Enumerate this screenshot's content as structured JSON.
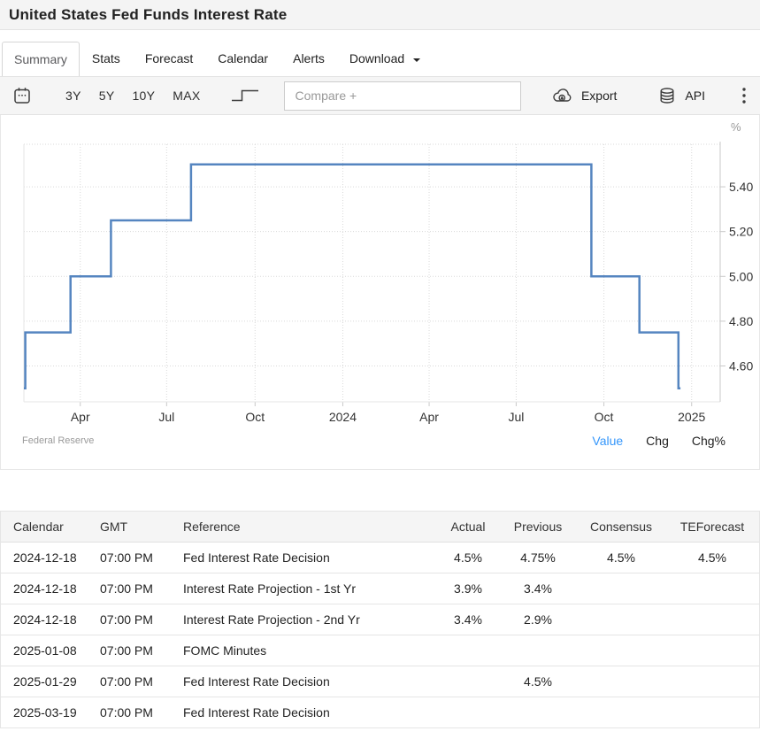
{
  "page": {
    "title": "United States Fed Funds Interest Rate"
  },
  "tabs": {
    "items": [
      {
        "label": "Summary",
        "active": true
      },
      {
        "label": "Stats",
        "active": false
      },
      {
        "label": "Forecast",
        "active": false
      },
      {
        "label": "Calendar",
        "active": false
      },
      {
        "label": "Alerts",
        "active": false
      },
      {
        "label": "Download",
        "active": false,
        "has_dropdown": true
      }
    ]
  },
  "toolbar": {
    "ranges": [
      {
        "label": "3Y"
      },
      {
        "label": "5Y"
      },
      {
        "label": "10Y"
      },
      {
        "label": "MAX"
      }
    ],
    "compare_placeholder": "Compare +",
    "export_label": "Export",
    "api_label": "API",
    "icons": {
      "date_range": "calendar-icon",
      "chart_type": "step-chart-icon",
      "export": "cloud-download-icon",
      "api": "database-icon",
      "menu": "kebab-menu-icon",
      "download_caret": "chevron-down-icon"
    }
  },
  "chart_data": {
    "type": "line",
    "subtype": "step-after",
    "title": "United States Fed Funds Interest Rate",
    "unit": "%",
    "source": "Federal Reserve",
    "color": "#5585C0",
    "grid": "dotted",
    "ylim": [
      4.44,
      5.59
    ],
    "yticks": [
      {
        "v": 4.6,
        "label": "4.60"
      },
      {
        "v": 4.8,
        "label": "4.80"
      },
      {
        "v": 5.0,
        "label": "5.00"
      },
      {
        "v": 5.2,
        "label": "5.20"
      },
      {
        "v": 5.4,
        "label": "5.40"
      }
    ],
    "xticks": [
      {
        "f": 0.081,
        "label": "Apr"
      },
      {
        "f": 0.205,
        "label": "Jul"
      },
      {
        "f": 0.332,
        "label": "Oct"
      },
      {
        "f": 0.458,
        "label": "2024"
      },
      {
        "f": 0.582,
        "label": "Apr"
      },
      {
        "f": 0.707,
        "label": "Jul"
      },
      {
        "f": 0.833,
        "label": "Oct"
      },
      {
        "f": 0.959,
        "label": "2025"
      }
    ],
    "series": [
      {
        "name": "Fed Funds Interest Rate",
        "points": [
          {
            "date": "2023-01-31",
            "value": 4.5,
            "f": 0.0
          },
          {
            "date": "2023-02-01",
            "value": 4.75,
            "f": 0.002
          },
          {
            "date": "2023-03-22",
            "value": 5.0,
            "f": 0.067
          },
          {
            "date": "2023-05-03",
            "value": 5.25,
            "f": 0.125
          },
          {
            "date": "2023-07-26",
            "value": 5.5,
            "f": 0.24
          },
          {
            "date": "2024-09-18",
            "value": 5.0,
            "f": 0.815
          },
          {
            "date": "2024-11-07",
            "value": 4.75,
            "f": 0.884
          },
          {
            "date": "2024-12-18",
            "value": 4.5,
            "f": 0.94
          },
          {
            "date": "2024-12-19",
            "value": 4.5,
            "f": 0.943
          }
        ]
      }
    ]
  },
  "chart_footer": {
    "source": "Federal Reserve",
    "links": [
      {
        "label": "Value",
        "active": true
      },
      {
        "label": "Chg",
        "active": false
      },
      {
        "label": "Chg%",
        "active": false
      }
    ],
    "active_color": "#3496fb"
  },
  "table": {
    "headers": [
      "Calendar",
      "GMT",
      "Reference",
      "Actual",
      "Previous",
      "Consensus",
      "TEForecast"
    ],
    "keys": [
      "calendar",
      "gmt",
      "reference",
      "actual",
      "previous",
      "consensus",
      "teforecast"
    ],
    "rows": [
      [
        "2024-12-18",
        "07:00 PM",
        "Fed Interest Rate Decision",
        "4.5%",
        "4.75%",
        "4.5%",
        "4.5%"
      ],
      [
        "2024-12-18",
        "07:00 PM",
        "Interest Rate Projection - 1st Yr",
        "3.9%",
        "3.4%",
        "",
        ""
      ],
      [
        "2024-12-18",
        "07:00 PM",
        "Interest Rate Projection - 2nd Yr",
        "3.4%",
        "2.9%",
        "",
        ""
      ],
      [
        "2025-01-08",
        "07:00 PM",
        "FOMC Minutes",
        "",
        "",
        "",
        ""
      ],
      [
        "2025-01-29",
        "07:00 PM",
        "Fed Interest Rate Decision",
        "",
        "4.5%",
        "",
        ""
      ],
      [
        "2025-03-19",
        "07:00 PM",
        "Fed Interest Rate Decision",
        "",
        "",
        "",
        ""
      ]
    ]
  }
}
